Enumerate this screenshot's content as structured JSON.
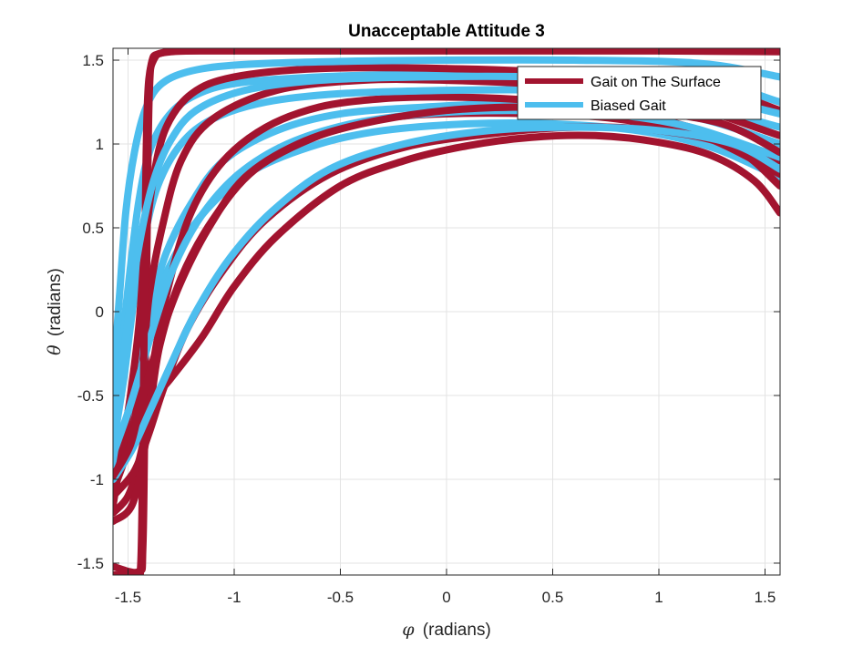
{
  "chart_data": {
    "type": "line",
    "title": "Unacceptable Attitude 3",
    "xlabel_symbol": "φ",
    "xlabel_text": "(radians)",
    "ylabel_symbol": "θ",
    "ylabel_text": "(radians)",
    "xlim": [
      -1.5708,
      1.5708
    ],
    "ylim": [
      -1.5708,
      1.5708
    ],
    "grid": true,
    "legend_position": "top-right",
    "xticks": [
      -1.5,
      -1,
      -0.5,
      0,
      0.5,
      1,
      1.5
    ],
    "xtick_labels": [
      "-1.5",
      "-1",
      "-0.5",
      "0",
      "0.5",
      "1",
      "1.5"
    ],
    "yticks": [
      -1.5,
      -1,
      -0.5,
      0,
      0.5,
      1,
      1.5
    ],
    "ytick_labels": [
      "-1.5",
      "-1",
      "-0.5",
      "0",
      "0.5",
      "1",
      "1.5"
    ],
    "series": [
      {
        "name": "Gait on The Surface",
        "color": "#A2142F",
        "curves": [
          {
            "x": [
              -1.57,
              -1.52,
              -1.46,
              -1.4,
              -1.3,
              -1.15,
              -1.0,
              -0.8,
              -0.5,
              -0.2,
              0.1,
              0.4,
              0.7,
              1.0,
              1.25,
              1.45,
              1.57
            ],
            "y": [
              -1.07,
              -0.9,
              -0.7,
              -0.55,
              -0.4,
              -0.15,
              0.15,
              0.45,
              0.75,
              0.9,
              0.99,
              1.04,
              1.05,
              1.01,
              0.93,
              0.78,
              0.59
            ]
          },
          {
            "x": [
              -1.57,
              -1.5,
              -1.45,
              -1.4,
              -1.35,
              -1.25,
              -1.1,
              -0.9,
              -0.6,
              -0.3,
              0.0,
              0.4,
              0.8,
              1.2,
              1.57
            ],
            "y": [
              -1.2,
              -1.1,
              -0.9,
              -0.6,
              -0.2,
              0.2,
              0.55,
              0.85,
              1.05,
              1.15,
              1.18,
              1.18,
              1.15,
              1.05,
              0.82
            ]
          },
          {
            "x": [
              -1.57,
              -1.48,
              -1.42,
              -1.38,
              -1.3,
              -1.2,
              -1.05,
              -0.85,
              -0.6,
              -0.3,
              0.0,
              0.4,
              0.8,
              1.2,
              1.57
            ],
            "y": [
              -1.25,
              -1.15,
              -0.8,
              -0.3,
              0.2,
              0.6,
              0.9,
              1.1,
              1.22,
              1.27,
              1.28,
              1.26,
              1.2,
              1.08,
              0.9
            ]
          },
          {
            "x": [
              -1.57,
              -1.48,
              -1.43,
              -1.4,
              -1.34,
              -1.25,
              -1.1,
              -0.8,
              -0.4,
              0.0,
              0.5,
              1.0,
              1.57
            ],
            "y": [
              -1.0,
              -0.7,
              -0.3,
              0.1,
              0.5,
              0.9,
              1.15,
              1.32,
              1.38,
              1.38,
              1.35,
              1.28,
              1.05
            ]
          },
          {
            "x": [
              -1.57,
              -1.5,
              -1.45,
              -1.42,
              -1.38,
              -1.32,
              -1.2,
              -1.0,
              -0.6,
              0.0,
              0.6,
              1.2,
              1.57
            ],
            "y": [
              -1.15,
              -0.6,
              -0.1,
              0.4,
              0.8,
              1.1,
              1.3,
              1.4,
              1.45,
              1.45,
              1.42,
              1.35,
              1.2
            ]
          },
          {
            "x": [
              -1.57,
              -1.45,
              -1.43,
              -1.42,
              -1.41,
              -1.4,
              -1.38,
              -1.3,
              -1.0,
              -0.5,
              0.0,
              0.5,
              1.0,
              1.57
            ],
            "y": [
              -1.52,
              -1.55,
              -1.4,
              -0.5,
              0.5,
              1.3,
              1.5,
              1.55,
              1.555,
              1.555,
              1.555,
              1.555,
              1.555,
              1.55
            ]
          },
          {
            "x": [
              -1.57,
              -1.46,
              -1.44,
              -1.43,
              -1.42,
              -1.41,
              -1.39,
              -1.35,
              -1.2,
              -0.8,
              0.0,
              0.8,
              1.57
            ],
            "y": [
              -1.57,
              -1.57,
              -1.5,
              -0.8,
              0.4,
              1.2,
              1.48,
              1.54,
              1.56,
              1.56,
              1.56,
              1.56,
              1.56
            ]
          },
          {
            "x": [
              -1.57,
              -1.47,
              -1.4,
              -1.33,
              -1.22,
              -1.05,
              -0.85,
              -0.55,
              -0.2,
              0.2,
              0.6,
              1.0,
              1.35,
              1.57
            ],
            "y": [
              -1.1,
              -0.95,
              -0.72,
              -0.45,
              -0.1,
              0.25,
              0.55,
              0.82,
              0.98,
              1.06,
              1.1,
              1.08,
              0.98,
              0.75
            ]
          },
          {
            "x": [
              -1.57,
              -1.49,
              -1.44,
              -1.36,
              -1.26,
              -1.12,
              -0.95,
              -0.7,
              -0.4,
              0.0,
              0.4,
              0.9,
              1.3,
              1.57
            ],
            "y": [
              -0.98,
              -0.8,
              -0.55,
              -0.2,
              0.15,
              0.5,
              0.8,
              1.0,
              1.12,
              1.2,
              1.22,
              1.2,
              1.12,
              0.95
            ]
          }
        ]
      },
      {
        "name": "Biased Gait",
        "color": "#4DBEEE",
        "curves": [
          {
            "x": [
              -1.57,
              -1.52,
              -1.47,
              -1.42,
              -1.36,
              -1.25,
              -1.1,
              -0.9,
              -0.6,
              -0.3,
              0.1,
              0.5,
              0.9,
              1.25,
              1.57
            ],
            "y": [
              -0.95,
              -0.75,
              -0.5,
              -0.2,
              0.1,
              0.4,
              0.65,
              0.85,
              1.0,
              1.08,
              1.12,
              1.12,
              1.08,
              0.98,
              0.8
            ]
          },
          {
            "x": [
              -1.57,
              -1.51,
              -1.46,
              -1.4,
              -1.32,
              -1.2,
              -1.05,
              -0.8,
              -0.5,
              -0.1,
              0.3,
              0.8,
              1.2,
              1.57
            ],
            "y": [
              -0.9,
              -0.65,
              -0.35,
              0.0,
              0.35,
              0.65,
              0.9,
              1.08,
              1.18,
              1.22,
              1.24,
              1.22,
              1.15,
              1.0
            ]
          },
          {
            "x": [
              -1.57,
              -1.52,
              -1.48,
              -1.43,
              -1.36,
              -1.25,
              -1.1,
              -0.85,
              -0.5,
              0.0,
              0.5,
              1.0,
              1.57
            ],
            "y": [
              -0.8,
              -0.4,
              0.0,
              0.4,
              0.75,
              1.0,
              1.15,
              1.25,
              1.3,
              1.32,
              1.32,
              1.28,
              1.1
            ]
          },
          {
            "x": [
              -1.57,
              -1.53,
              -1.49,
              -1.45,
              -1.4,
              -1.32,
              -1.2,
              -1.0,
              -0.6,
              0.0,
              0.6,
              1.2,
              1.57
            ],
            "y": [
              -0.6,
              -0.2,
              0.25,
              0.65,
              0.95,
              1.15,
              1.28,
              1.36,
              1.4,
              1.42,
              1.42,
              1.38,
              1.25
            ]
          },
          {
            "x": [
              -1.57,
              -1.54,
              -1.51,
              -1.47,
              -1.42,
              -1.35,
              -1.22,
              -1.0,
              -0.6,
              0.0,
              0.6,
              1.2,
              1.57
            ],
            "y": [
              -0.4,
              0.1,
              0.6,
              0.95,
              1.2,
              1.35,
              1.43,
              1.47,
              1.49,
              1.5,
              1.5,
              1.48,
              1.4
            ]
          },
          {
            "x": [
              -1.57,
              -1.5,
              -1.44,
              -1.37,
              -1.28,
              -1.15,
              -0.98,
              -0.75,
              -0.45,
              -0.1,
              0.3,
              0.75,
              1.15,
              1.57
            ],
            "y": [
              -0.85,
              -0.6,
              -0.35,
              -0.05,
              0.28,
              0.58,
              0.82,
              1.0,
              1.12,
              1.18,
              1.2,
              1.18,
              1.1,
              0.92
            ]
          },
          {
            "x": [
              -1.57,
              -1.53,
              -1.49,
              -1.44,
              -1.38,
              -1.3,
              -1.18,
              -0.95,
              -0.6,
              -0.1,
              0.4,
              0.95,
              1.57
            ],
            "y": [
              -0.7,
              -0.35,
              0.05,
              0.45,
              0.78,
              1.02,
              1.2,
              1.32,
              1.38,
              1.4,
              1.4,
              1.36,
              1.18
            ]
          },
          {
            "x": [
              -1.57,
              -1.48,
              -1.4,
              -1.3,
              -1.18,
              -1.02,
              -0.82,
              -0.55,
              -0.2,
              0.2,
              0.6,
              1.0,
              1.35,
              1.57
            ],
            "y": [
              -1.0,
              -0.82,
              -0.6,
              -0.32,
              0.0,
              0.32,
              0.6,
              0.85,
              1.0,
              1.08,
              1.1,
              1.08,
              1.0,
              0.85
            ]
          }
        ]
      }
    ]
  }
}
